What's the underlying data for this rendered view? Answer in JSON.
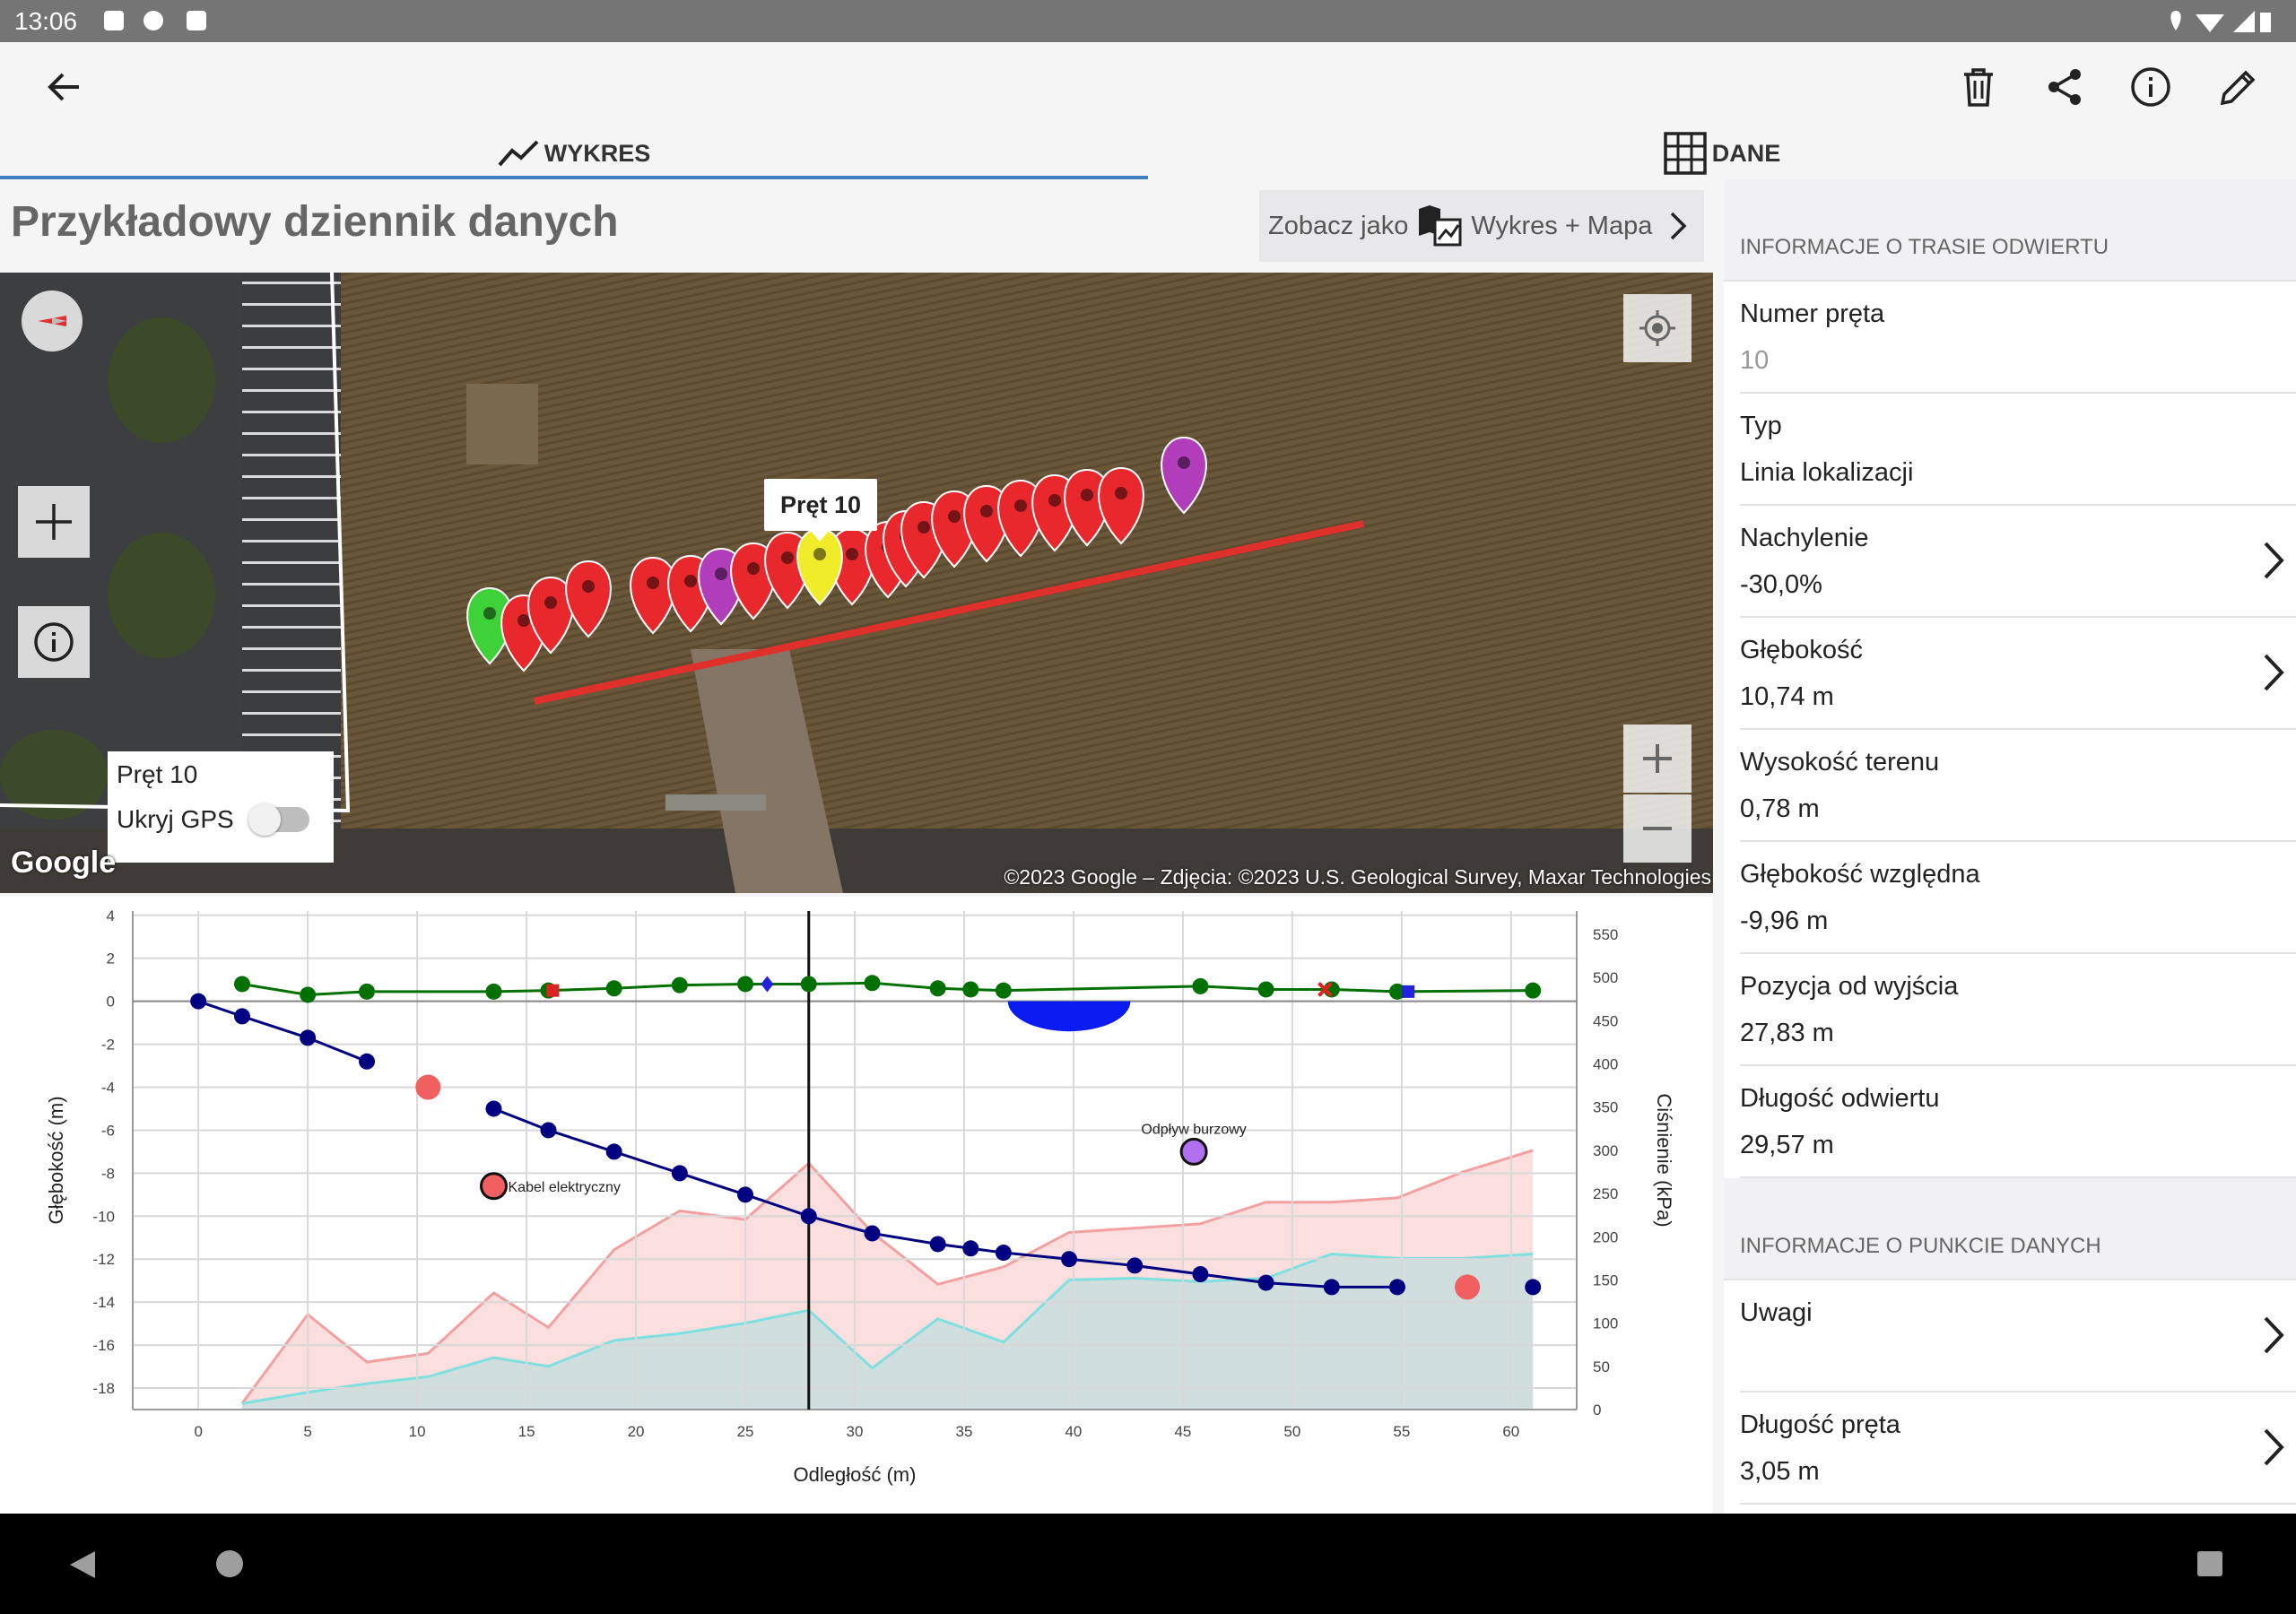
{
  "status": {
    "time": "13:06"
  },
  "tabs": [
    {
      "label": "WYKRES",
      "icon": "line-chart-icon"
    },
    {
      "label": "DANE",
      "icon": "grid-table-icon"
    }
  ],
  "title": "Przykładowy dziennik danych",
  "view_as": {
    "label": "Zobacz jako",
    "value": "Wykres + Mapa"
  },
  "map": {
    "callout": "Pręt 10",
    "panel_rod": "Pręt 10",
    "hide_gps_label": "Ukryj GPS",
    "hide_gps_on": false,
    "attribution": "©2023 Google – Zdjęcia: ©2023 U.S. Geological Survey, Maxar Technologies",
    "logo": "Google"
  },
  "chart_data": {
    "type": "line",
    "xlabel": "Odległość (m)",
    "ylabel": "Głębokość (m)",
    "y2label": "Ciśnienie (kPa)",
    "xlim": [
      -3,
      63
    ],
    "ylim": [
      -19,
      4.2
    ],
    "y2lim": [
      0,
      577
    ],
    "x_ticks": [
      0,
      5,
      10,
      15,
      20,
      25,
      30,
      35,
      40,
      45,
      50,
      55,
      60
    ],
    "y_ticks": [
      4,
      2,
      0,
      -2,
      -4,
      -6,
      -8,
      -10,
      -12,
      -14,
      -16,
      -18
    ],
    "y2_ticks": [
      550,
      500,
      450,
      400,
      350,
      300,
      250,
      200,
      150,
      100,
      50,
      0
    ],
    "cursor_x": 27.9,
    "series": [
      {
        "color": "#000080",
        "segments": [
          [
            [
              0,
              0
            ],
            [
              2,
              -0.7
            ],
            [
              5,
              -1.7
            ],
            [
              7.7,
              -2.8
            ]
          ],
          [
            [
              13.5,
              -5.0
            ],
            [
              16,
              -6.0
            ],
            [
              19,
              -7.0
            ],
            [
              22,
              -8.0
            ],
            [
              25,
              -9.0
            ],
            [
              27.9,
              -10.0
            ],
            [
              30.8,
              -10.8
            ],
            [
              33.8,
              -11.3
            ],
            [
              35.3,
              -11.5
            ],
            [
              36.8,
              -11.7
            ],
            [
              39.8,
              -12.0
            ],
            [
              42.8,
              -12.3
            ],
            [
              45.8,
              -12.7
            ],
            [
              48.8,
              -13.1
            ],
            [
              51.8,
              -13.3
            ],
            [
              54.8,
              -13.3
            ]
          ],
          [
            [
              61,
              -13.3
            ]
          ]
        ]
      },
      {
        "color": "#007000",
        "points": [
          [
            2,
            0.8
          ],
          [
            5,
            0.3
          ],
          [
            7.7,
            0.45
          ],
          [
            13.5,
            0.45
          ],
          [
            16,
            0.5
          ],
          [
            19,
            0.6
          ],
          [
            22,
            0.75
          ],
          [
            25,
            0.8
          ],
          [
            27.9,
            0.8
          ],
          [
            30.8,
            0.85
          ],
          [
            33.8,
            0.6
          ],
          [
            35.3,
            0.55
          ],
          [
            36.8,
            0.5
          ],
          [
            45.8,
            0.7
          ],
          [
            48.8,
            0.55
          ],
          [
            51.8,
            0.55
          ],
          [
            54.8,
            0.45
          ],
          [
            61,
            0.5
          ]
        ]
      },
      {
        "name": "",
        "color": "#f4a0a0",
        "type": "area",
        "axis": "y2",
        "points": [
          [
            2,
            7
          ],
          [
            5,
            110
          ],
          [
            7.7,
            55
          ],
          [
            10.5,
            65
          ],
          [
            13.5,
            135
          ],
          [
            16,
            95
          ],
          [
            19,
            185
          ],
          [
            22,
            230
          ],
          [
            25,
            220
          ],
          [
            27.9,
            285
          ],
          [
            30.8,
            205
          ],
          [
            33.8,
            145
          ],
          [
            36.8,
            165
          ],
          [
            39.8,
            205
          ],
          [
            42.8,
            210
          ],
          [
            45.8,
            215
          ],
          [
            48.8,
            240
          ],
          [
            51.8,
            240
          ],
          [
            54.8,
            245
          ],
          [
            57.8,
            275
          ],
          [
            61,
            300
          ]
        ]
      },
      {
        "name": "",
        "color": "#80e0e0",
        "type": "area",
        "axis": "y2",
        "points": [
          [
            2,
            7
          ],
          [
            5,
            20
          ],
          [
            7.7,
            30
          ],
          [
            10.5,
            38
          ],
          [
            13.5,
            60
          ],
          [
            16,
            50
          ],
          [
            19,
            80
          ],
          [
            22,
            88
          ],
          [
            25,
            100
          ],
          [
            27.9,
            115
          ],
          [
            30.8,
            48
          ],
          [
            33.8,
            105
          ],
          [
            36.8,
            78
          ],
          [
            39.8,
            150
          ],
          [
            42.8,
            152
          ],
          [
            45.8,
            148
          ],
          [
            48.8,
            152
          ],
          [
            51.8,
            180
          ],
          [
            54.8,
            175
          ],
          [
            57.8,
            175
          ],
          [
            61,
            180
          ]
        ]
      }
    ],
    "markers": [
      {
        "label": "",
        "x": 10.5,
        "y": -4.0,
        "color": "#f06060"
      },
      {
        "label": "Kabel elektryczny",
        "x": 13.5,
        "y": -8.6,
        "color": "#f06060"
      },
      {
        "label": "Odpływ burzowy",
        "x": 45.5,
        "y": -7.0,
        "color": "#b070f0"
      },
      {
        "label": "",
        "x": 58,
        "y": -13.3,
        "color": "#f06060"
      }
    ],
    "small_markers": [
      {
        "x": 16.2,
        "y": 0.5,
        "shape": "square",
        "color": "#dd2222"
      },
      {
        "x": 26,
        "y": 0.8,
        "shape": "diamond",
        "color": "#2222dd"
      },
      {
        "x": 51.5,
        "y": 0.55,
        "shape": "cross",
        "color": "#dd2222"
      },
      {
        "x": 55.3,
        "y": 0.45,
        "shape": "square",
        "color": "#2222dd"
      }
    ],
    "pipe": {
      "x_start": 37,
      "x_end": 42.6,
      "depth": -1.4,
      "color": "#0a1cf0"
    }
  },
  "info_route": {
    "header": "INFORMACJE O TRASIE ODWIERTU",
    "items": [
      {
        "label": "Numer pręta",
        "value": "10",
        "muted": true,
        "chevron": false
      },
      {
        "label": "Typ",
        "value": "Linia lokalizacji",
        "chevron": false
      },
      {
        "label": "Nachylenie",
        "value": "-30,0%",
        "chevron": true
      },
      {
        "label": "Głębokość",
        "value": "10,74 m",
        "chevron": true
      },
      {
        "label": "Wysokość terenu",
        "value": "0,78 m",
        "chevron": false
      },
      {
        "label": "Głębokość względna",
        "value": "-9,96 m",
        "chevron": false
      },
      {
        "label": "Pozycja od wyjścia",
        "value": "27,83 m",
        "chevron": false
      },
      {
        "label": "Długość odwiertu",
        "value": "29,57 m",
        "chevron": false
      }
    ]
  },
  "info_point": {
    "header": "INFORMACJE O PUNKCIE DANYCH",
    "items": [
      {
        "label": "Uwagi",
        "value": "",
        "chevron": true
      },
      {
        "label": "Długość pręta",
        "value": "3,05 m",
        "chevron": true
      }
    ]
  },
  "colors": {
    "accent": "#3f7ec2",
    "pin_red": "#e8282c",
    "pin_green": "#3fd13a",
    "pin_yellow": "#f0ec2a",
    "pin_magenta": "#b13dbb",
    "route_line": "#e0302c"
  }
}
